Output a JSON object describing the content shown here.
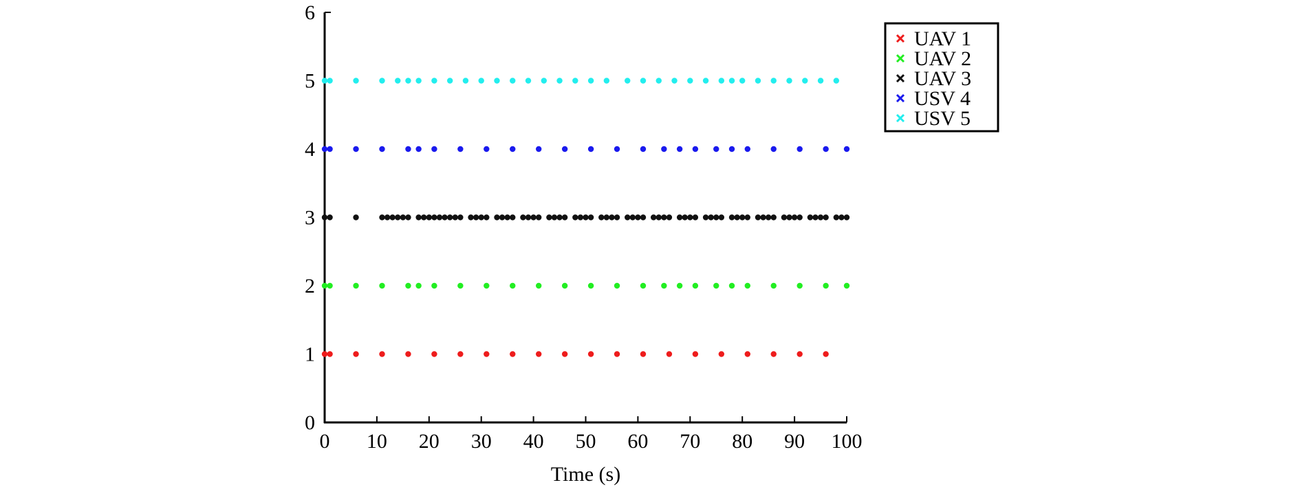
{
  "chart_data": {
    "type": "scatter",
    "xlabel": "Time (s)",
    "ylabel": "",
    "xlim": [
      0,
      100
    ],
    "ylim": [
      0,
      6
    ],
    "xticks": [
      0,
      10,
      20,
      30,
      40,
      50,
      60,
      70,
      80,
      90,
      100
    ],
    "yticks": [
      0,
      1,
      2,
      3,
      4,
      5,
      6
    ],
    "xtick_labels": [
      "0",
      "10",
      "20",
      "30",
      "40",
      "50",
      "60",
      "70",
      "80",
      "90",
      "100"
    ],
    "ytick_labels": [
      "0",
      "1",
      "2",
      "3",
      "4",
      "5",
      "6"
    ],
    "grid": false,
    "legend": {
      "position": "top-right",
      "marker": "x"
    },
    "series": [
      {
        "name": "UAV 1",
        "color": "#ee1c1c",
        "y": 1,
        "x": [
          0,
          1,
          6,
          11,
          16,
          21,
          26,
          31,
          36,
          41,
          46,
          51,
          56,
          61,
          66,
          71,
          76,
          81,
          86,
          91,
          96
        ]
      },
      {
        "name": "UAV 2",
        "color": "#22ee22",
        "y": 2,
        "x": [
          0,
          1,
          6,
          11,
          16,
          18,
          21,
          26,
          31,
          36,
          41,
          46,
          51,
          56,
          61,
          65,
          68,
          71,
          75,
          78,
          81,
          86,
          91,
          96,
          100
        ]
      },
      {
        "name": "UAV 3",
        "color": "#111111",
        "y": 3,
        "x": [
          0,
          1,
          6,
          11,
          12,
          13,
          14,
          15,
          16,
          18,
          19,
          20,
          21,
          22,
          23,
          24,
          25,
          26,
          28,
          29,
          30,
          31,
          33,
          34,
          35,
          36,
          38,
          39,
          40,
          41,
          43,
          44,
          45,
          46,
          48,
          49,
          50,
          51,
          53,
          54,
          55,
          56,
          58,
          59,
          60,
          61,
          63,
          64,
          65,
          66,
          68,
          69,
          70,
          71,
          73,
          74,
          75,
          76,
          78,
          79,
          80,
          81,
          83,
          84,
          85,
          86,
          88,
          89,
          90,
          91,
          93,
          94,
          95,
          96,
          98,
          99,
          100
        ]
      },
      {
        "name": "USV 4",
        "color": "#1a1aee",
        "y": 4,
        "x": [
          0,
          1,
          6,
          11,
          16,
          18,
          21,
          26,
          31,
          36,
          41,
          46,
          51,
          56,
          61,
          65,
          68,
          71,
          75,
          78,
          81,
          86,
          91,
          96,
          100
        ]
      },
      {
        "name": "USV 5",
        "color": "#22eeee",
        "y": 5,
        "x": [
          0,
          1,
          6,
          11,
          14,
          16,
          18,
          21,
          24,
          27,
          30,
          33,
          36,
          39,
          42,
          45,
          48,
          51,
          54,
          58,
          61,
          64,
          67,
          70,
          73,
          76,
          78,
          80,
          83,
          86,
          89,
          92,
          95,
          98
        ]
      }
    ]
  }
}
